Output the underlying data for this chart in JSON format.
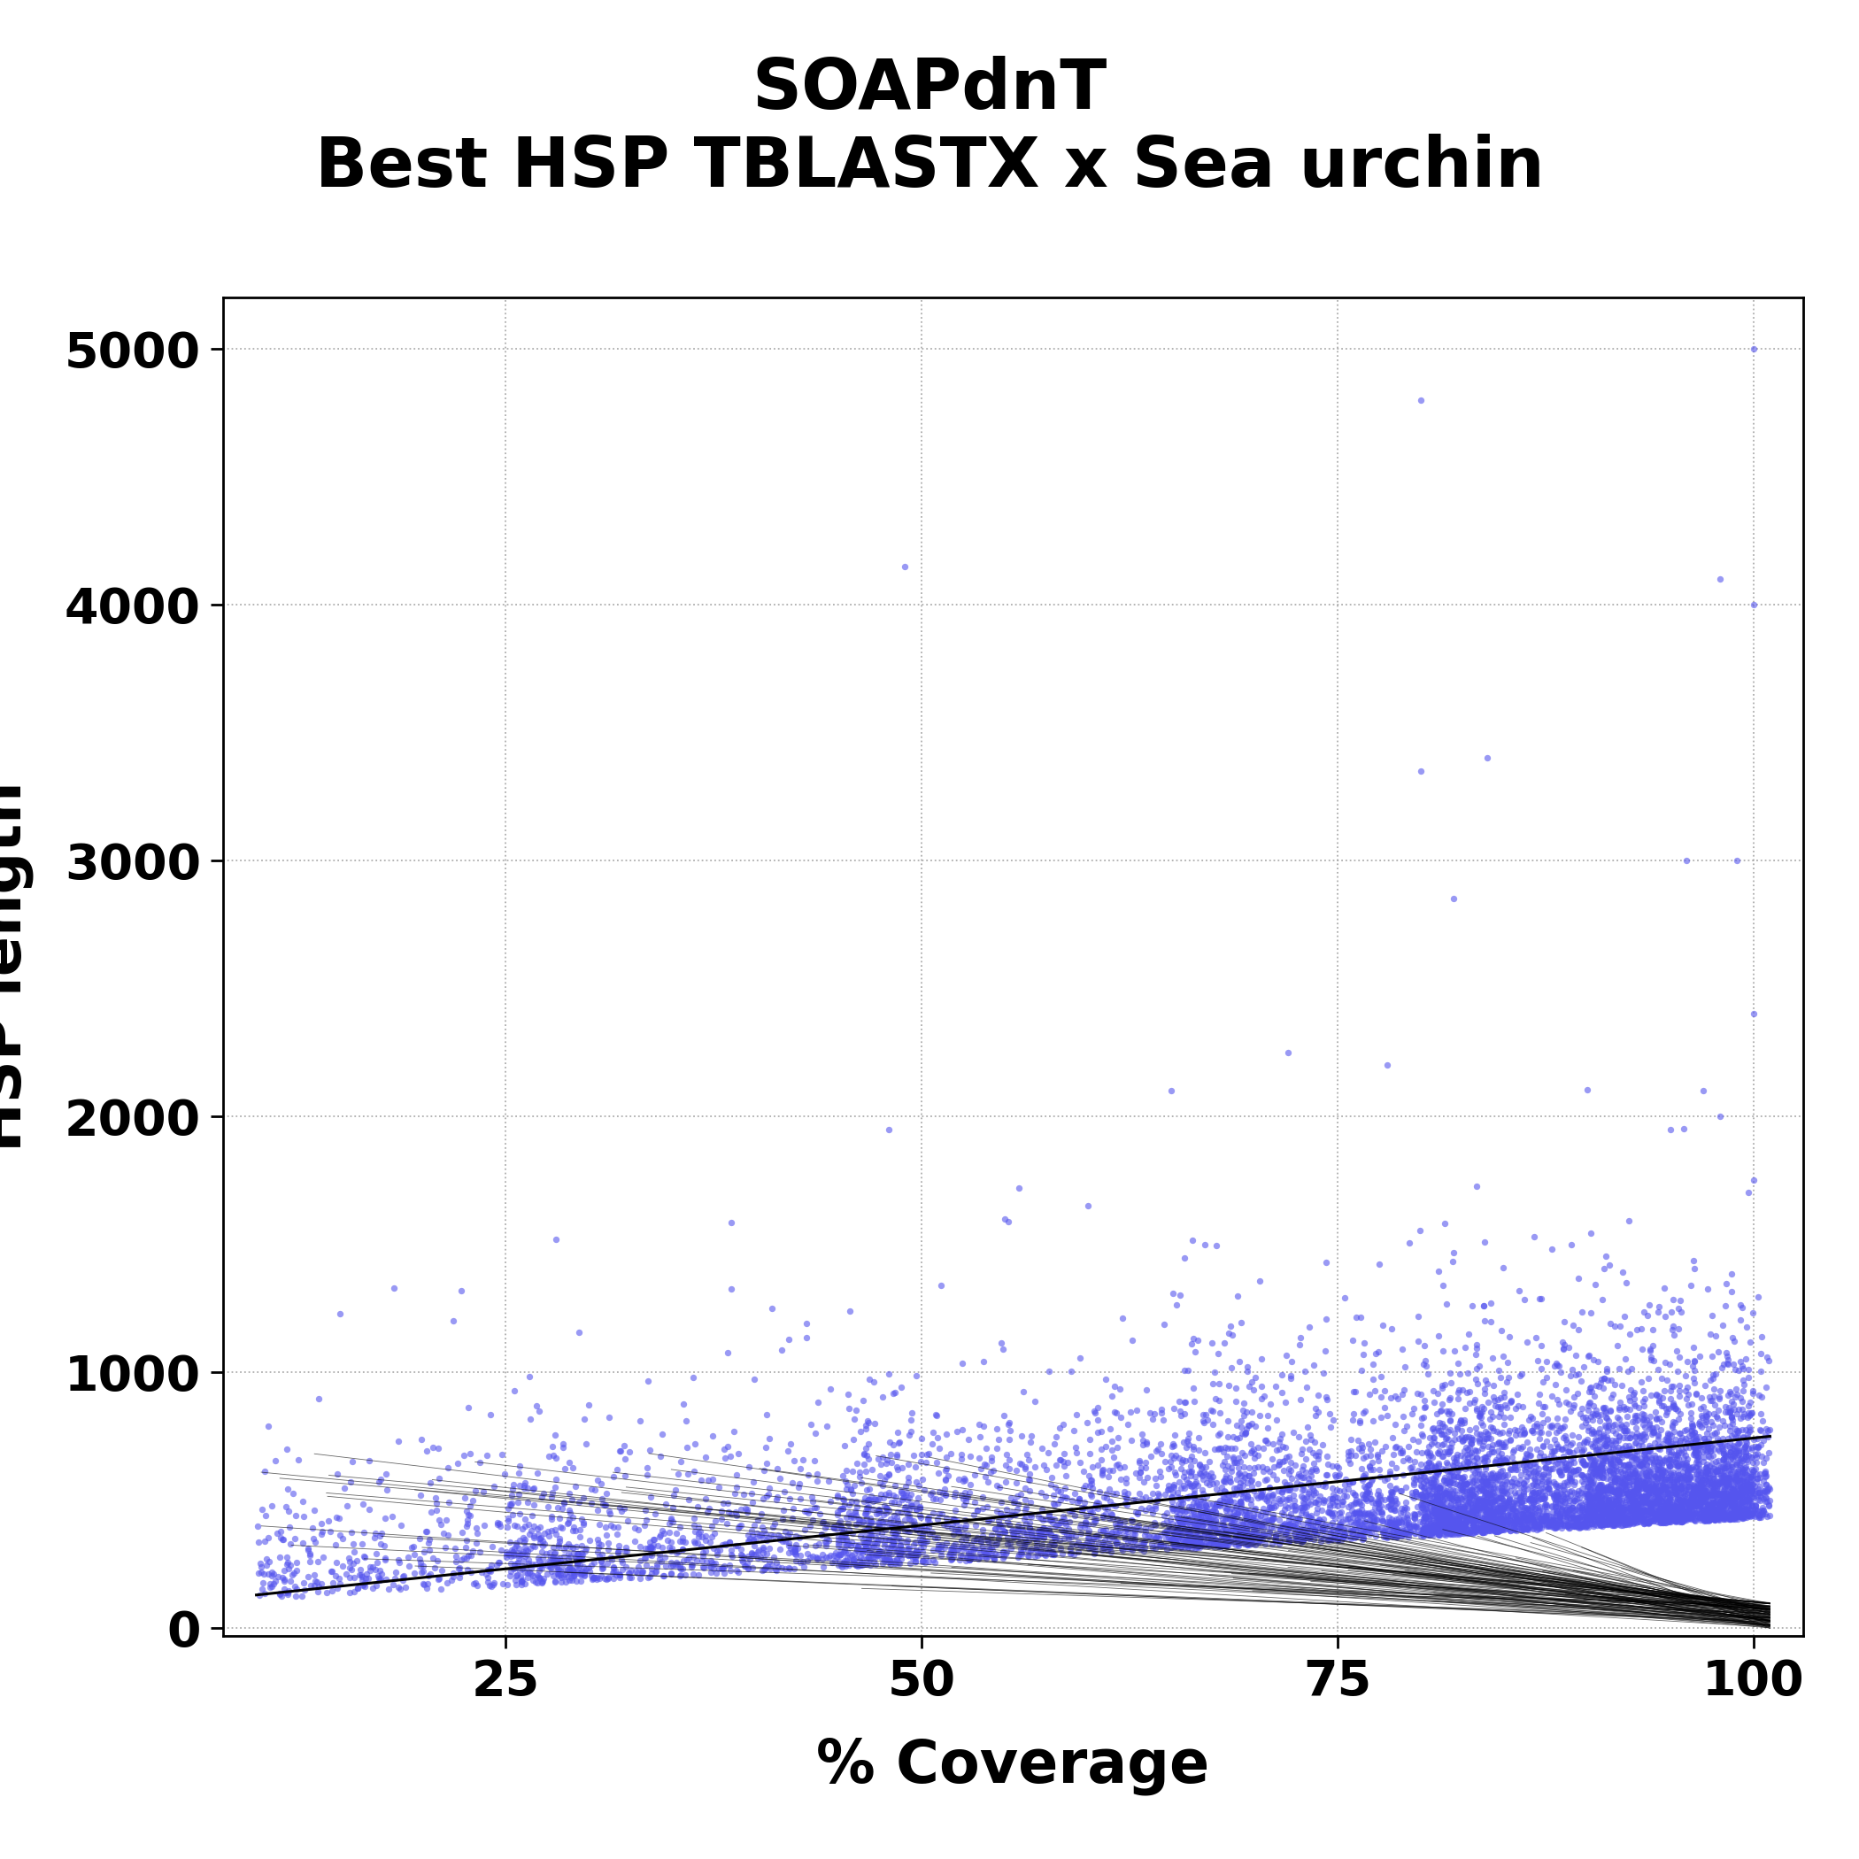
{
  "title_line1": "SOAPdnT",
  "title_line2": "Best HSP TBLASTX x Sea urchin",
  "xlabel": "% Coverage",
  "ylabel": "HSP length",
  "xlim": [
    8,
    103
  ],
  "ylim": [
    -30,
    5200
  ],
  "xticks": [
    25,
    50,
    75,
    100
  ],
  "yticks": [
    0,
    1000,
    2000,
    3000,
    4000,
    5000
  ],
  "dot_color": "#5555EE",
  "dot_alpha": 0.6,
  "dot_size": 28,
  "line_color": "#000000",
  "background_color": "#ffffff",
  "title_fontsize": 56,
  "axis_label_fontsize": 48,
  "tick_fontsize": 40,
  "n_points": 9000,
  "seed": 42
}
